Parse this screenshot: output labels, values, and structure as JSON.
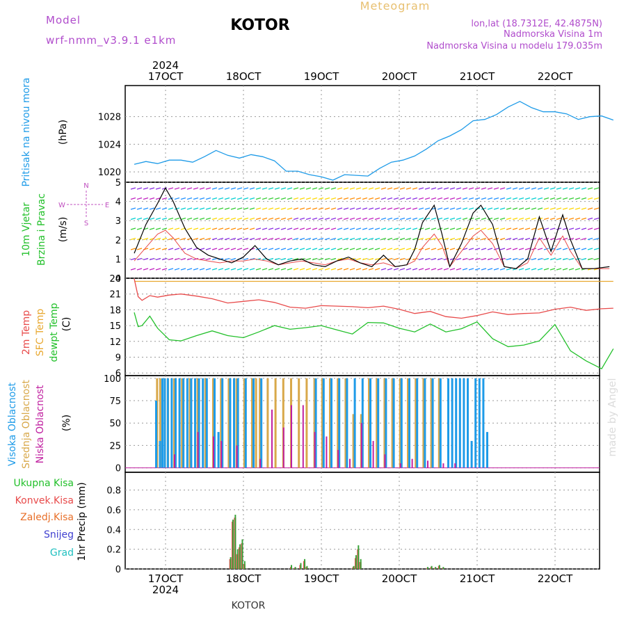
{
  "header": {
    "model_label": "Model",
    "model_name": "wrf-nmm_v3.9.1  e1km",
    "station": "KOTOR",
    "product": "Meteogram",
    "lonlat": "lon,lat (18.7312E, 42.4875N)",
    "elevation": "Nadmorska Visina 1m",
    "model_elevation": "Nadmorska Visina u modelu 179.035m",
    "watermark": "made by Angel",
    "footer_station": "KOTOR"
  },
  "time_axis": {
    "year": "2024",
    "tick_labels": [
      "17OCT",
      "18OCT",
      "19OCT",
      "20OCT",
      "21OCT",
      "22OCT"
    ]
  },
  "colors": {
    "pressure": "#1e9be8",
    "temp2m": "#e84a4a",
    "sfc_temp": "#e8a830",
    "dewpoint": "#22c02a",
    "high_cloud": "#1e9be8",
    "mid_cloud": "#d8a84a",
    "low_cloud": "#c020a0",
    "total_precip": "#3aa33a",
    "conv_precip": "#e84a4a",
    "frozen_precip": "#e8702a",
    "snow": "#4040d0",
    "hail": "#20c0c0",
    "wind_speed": "#000000",
    "gust": "#e84a4a",
    "label_purple": "#c050c0"
  },
  "chart_data": [
    {
      "type": "line",
      "panel": "pressure",
      "ylabel_left": "Pritisak na nivou mora",
      "ylabel_unit": "(hPa)",
      "ylim": [
        1018.5,
        1032.5
      ],
      "yticks": [
        "1020",
        "1024",
        "1028"
      ],
      "ytick_values": [
        1020,
        1024,
        1028
      ],
      "grid": true,
      "x_day_offset": [
        0,
        0.15,
        0.3,
        0.45,
        0.6,
        0.75,
        0.9,
        1.05,
        1.2,
        1.35,
        1.5,
        1.65,
        1.8,
        1.95,
        2.1,
        2.25,
        2.4,
        2.55,
        2.7,
        2.85,
        3.0,
        3.15,
        3.3,
        3.45,
        3.6,
        3.75,
        3.9,
        4.05,
        4.2,
        4.35,
        4.5,
        4.65,
        4.8,
        4.95,
        5.1,
        5.25,
        5.4,
        5.55,
        5.7,
        5.85,
        6.0,
        6.15
      ],
      "series": [
        {
          "values": [
            1021.1,
            1021.5,
            1021.2,
            1021.7,
            1021.7,
            1021.4,
            1022.2,
            1023.1,
            1022.4,
            1022.0,
            1022.5,
            1022.2,
            1021.6,
            1020.1,
            1020.1,
            1019.6,
            1019.3,
            1018.8,
            1019.6,
            1019.5,
            1019.4,
            1020.5,
            1021.4,
            1021.7,
            1022.3,
            1023.3,
            1024.5,
            1025.2,
            1026.1,
            1027.4,
            1027.6,
            1028.3,
            1029.4,
            1030.2,
            1029.3,
            1028.7,
            1028.7,
            1028.4,
            1027.6,
            1028.0,
            1028.1,
            1027.5
          ]
        }
      ]
    },
    {
      "type": "line",
      "panel": "wind",
      "ylabel_left": "10m Vjetar",
      "ylabel_left2": "Brzina i Pravac",
      "ylabel_unit": "(m/s)",
      "compass": [
        "N",
        "W",
        "E",
        "S"
      ],
      "ylim": [
        0,
        5
      ],
      "yticks": [
        "0",
        "1",
        "2",
        "3",
        "4",
        "5"
      ],
      "ytick_values": [
        0,
        1,
        2,
        3,
        4,
        5
      ],
      "grid": true,
      "x_day_offset": [
        0,
        0.15,
        0.3,
        0.4,
        0.5,
        0.65,
        0.8,
        0.95,
        1.1,
        1.25,
        1.4,
        1.55,
        1.7,
        1.85,
        2.0,
        2.15,
        2.3,
        2.45,
        2.6,
        2.75,
        2.9,
        3.05,
        3.2,
        3.35,
        3.5,
        3.6,
        3.7,
        3.85,
        3.95,
        4.05,
        4.2,
        4.35,
        4.45,
        4.6,
        4.75,
        4.9,
        5.05,
        5.2,
        5.35,
        5.5,
        5.6,
        5.75,
        5.9,
        6.1
      ],
      "series": [
        {
          "values": [
            1.3,
            2.8,
            3.9,
            4.7,
            4.0,
            2.6,
            1.6,
            1.2,
            1.0,
            0.8,
            1.1,
            1.7,
            1.0,
            0.7,
            0.9,
            1.0,
            0.7,
            0.6,
            0.9,
            1.1,
            0.8,
            0.6,
            1.2,
            0.6,
            0.7,
            1.5,
            2.9,
            3.8,
            2.3,
            0.6,
            1.8,
            3.4,
            3.8,
            2.8,
            0.6,
            0.5,
            1.0,
            3.2,
            1.4,
            3.3,
            2.0,
            0.5,
            0.5,
            0.6
          ]
        },
        {
          "values": [
            0.9,
            1.6,
            2.3,
            2.5,
            2.1,
            1.3,
            1.0,
            0.9,
            0.8,
            0.9,
            0.9,
            1.0,
            0.9,
            0.7,
            0.8,
            0.9,
            0.8,
            0.7,
            0.9,
            1.0,
            0.8,
            0.7,
            0.8,
            0.6,
            0.7,
            0.9,
            1.6,
            2.3,
            1.7,
            0.6,
            1.4,
            2.2,
            2.5,
            1.8,
            0.6,
            0.5,
            0.8,
            2.1,
            1.2,
            2.2,
            1.4,
            0.5,
            0.5,
            0.5
          ]
        }
      ]
    },
    {
      "type": "line",
      "panel": "temperature",
      "ylabel_lines": [
        "2m Temp",
        "SFC Temp",
        "dewpt Temp"
      ],
      "ylabel_unit": "(C)",
      "ylim": [
        5.5,
        24
      ],
      "yticks": [
        "6",
        "9",
        "12",
        "15",
        "18",
        "21",
        "24"
      ],
      "ytick_values": [
        6,
        9,
        12,
        15,
        18,
        21,
        24
      ],
      "grid": true,
      "x_day_offset": [
        0,
        0.05,
        0.1,
        0.2,
        0.3,
        0.45,
        0.6,
        0.8,
        1.0,
        1.2,
        1.4,
        1.6,
        1.8,
        2.0,
        2.2,
        2.4,
        2.6,
        2.8,
        3.0,
        3.2,
        3.4,
        3.6,
        3.8,
        4.0,
        4.2,
        4.4,
        4.6,
        4.8,
        5.0,
        5.2,
        5.4,
        5.6,
        5.8,
        6.0,
        6.15
      ],
      "series": [
        {
          "name": "2m Temp",
          "values": [
            23.9,
            20.5,
            19.8,
            20.7,
            20.4,
            20.8,
            21.0,
            20.6,
            20.1,
            19.3,
            19.6,
            19.9,
            19.4,
            18.5,
            18.3,
            18.8,
            18.7,
            18.6,
            18.4,
            18.7,
            18.1,
            17.3,
            17.7,
            16.7,
            16.4,
            16.9,
            17.6,
            17.1,
            17.3,
            17.4,
            18.1,
            18.5,
            17.9,
            18.2,
            18.3
          ]
        },
        {
          "name": "SFC Temp",
          "values": [
            23.4,
            23.4,
            23.4,
            23.4,
            23.4,
            23.4,
            23.4,
            23.4,
            23.4,
            23.4,
            23.4,
            23.4,
            23.4,
            23.4,
            23.4,
            23.4,
            23.4,
            23.4,
            23.4,
            23.4,
            23.4,
            23.4,
            23.4,
            23.4,
            23.4,
            23.4,
            23.4,
            23.4,
            23.4,
            23.4,
            23.4,
            23.4,
            23.4,
            23.4,
            23.4
          ]
        },
        {
          "name": "dewpt Temp",
          "values": [
            17.5,
            14.8,
            15.0,
            16.8,
            14.5,
            12.3,
            12.1,
            13.1,
            14.0,
            13.1,
            12.7,
            13.8,
            15.0,
            14.3,
            14.6,
            15.0,
            14.2,
            13.4,
            15.6,
            15.5,
            14.5,
            13.8,
            15.3,
            13.8,
            14.4,
            15.7,
            12.5,
            11.0,
            11.3,
            12.1,
            15.2,
            10.2,
            8.3,
            6.8,
            10.6
          ]
        }
      ]
    },
    {
      "type": "bar",
      "panel": "clouds",
      "ylabel_lines": [
        "Visoka Oblacnost",
        "Srednja Oblacnost",
        "Niska Oblacnost"
      ],
      "ylabel_unit": "(%)",
      "ylim": [
        -5,
        103
      ],
      "yticks": [
        "0",
        "25",
        "50",
        "75",
        "100"
      ],
      "ytick_values": [
        0,
        25,
        50,
        75,
        100
      ],
      "grid": true,
      "high_x_day_offset": [
        0.25,
        0.3,
        0.33,
        0.36,
        0.4,
        0.45,
        0.5,
        0.55,
        0.6,
        0.65,
        0.7,
        0.75,
        0.8,
        0.85,
        0.9,
        1.0,
        1.05,
        1.1,
        1.2,
        1.25,
        1.3,
        1.4,
        1.5,
        1.6,
        2.3,
        2.4,
        2.5,
        2.6,
        2.7,
        2.8,
        2.9,
        3.0,
        3.1,
        3.2,
        3.3,
        3.4,
        3.5,
        3.6,
        3.7,
        3.8,
        3.9,
        4.0,
        4.05,
        4.1,
        4.15,
        4.2,
        4.25,
        4.3,
        4.35,
        4.4,
        4.45,
        4.5
      ],
      "high_values": [
        75,
        30,
        100,
        100,
        100,
        100,
        100,
        100,
        100,
        100,
        100,
        100,
        100,
        100,
        100,
        100,
        40,
        100,
        100,
        100,
        100,
        100,
        100,
        100,
        100,
        100,
        100,
        100,
        100,
        100,
        100,
        100,
        100,
        100,
        100,
        100,
        100,
        100,
        100,
        100,
        100,
        100,
        100,
        100,
        100,
        100,
        100,
        30,
        100,
        100,
        100,
        40
      ],
      "mid_x_day_offset": [
        0.28,
        0.32,
        0.38,
        0.42,
        0.5,
        0.6,
        0.7,
        0.8,
        0.9,
        1.0,
        1.1,
        1.2,
        1.3,
        1.4,
        1.5,
        1.55,
        1.6,
        1.7,
        1.8,
        1.9,
        2.0,
        2.1,
        2.2,
        2.3,
        2.4,
        2.5,
        2.6,
        2.7,
        2.8,
        2.9,
        3.0,
        3.1,
        3.2,
        3.3,
        3.4,
        3.5,
        3.6,
        3.7,
        3.8,
        3.9
      ],
      "mid_values": [
        100,
        100,
        100,
        100,
        100,
        100,
        100,
        100,
        100,
        100,
        100,
        100,
        100,
        100,
        100,
        100,
        100,
        100,
        100,
        100,
        100,
        100,
        100,
        100,
        100,
        100,
        100,
        100,
        60,
        60,
        100,
        100,
        100,
        100,
        100,
        100,
        100,
        100,
        100,
        100
      ],
      "low_x_day_offset": [
        0.5,
        0.8,
        1.0,
        1.1,
        1.3,
        1.6,
        1.75,
        1.9,
        2.0,
        2.15,
        2.3,
        2.45,
        2.6,
        2.75,
        2.9,
        3.05,
        3.2,
        3.4,
        3.55,
        3.75,
        3.95,
        4.1
      ],
      "low_values": [
        15,
        40,
        35,
        30,
        25,
        10,
        65,
        45,
        70,
        70,
        40,
        35,
        20,
        10,
        50,
        30,
        15,
        5,
        10,
        8,
        5,
        5
      ]
    },
    {
      "type": "bar",
      "panel": "precip",
      "legend": [
        "Ukupna Kisa",
        "Konvek.Kisa",
        "Zaledj.Kisa",
        "Snijeg",
        "Grad"
      ],
      "ylabel_left": "1hr Precip (mm)",
      "ylim": [
        0,
        0.98
      ],
      "yticks": [
        "0",
        "0.2",
        "0.4",
        "0.6",
        "0.8"
      ],
      "ytick_values": [
        0,
        0.2,
        0.4,
        0.6,
        0.8
      ],
      "grid": true,
      "x_day_offset": [
        1.22,
        1.25,
        1.28,
        1.31,
        1.34,
        1.37,
        1.4,
        2.0,
        2.05,
        2.12,
        2.17,
        2.2,
        2.8,
        2.83,
        2.86,
        2.89,
        3.75,
        3.8,
        3.85,
        3.9,
        3.95
      ],
      "values": [
        0.12,
        0.5,
        0.55,
        0.2,
        0.25,
        0.3,
        0.08,
        0.04,
        0.02,
        0.06,
        0.1,
        0.03,
        0.03,
        0.14,
        0.24,
        0.1,
        0.02,
        0.03,
        0.02,
        0.04,
        0.02
      ],
      "conv_values": [
        0.1,
        0.48,
        0.52,
        0.15,
        0.22,
        0.26,
        0.05,
        0.02,
        0.01,
        0.04,
        0.08,
        0.02,
        0.02,
        0.11,
        0.2,
        0.07,
        0.01,
        0.02,
        0.01,
        0.03,
        0.01
      ]
    }
  ]
}
